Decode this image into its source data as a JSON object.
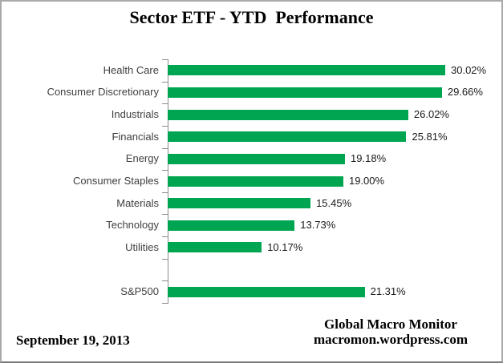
{
  "title": "Sector ETF - YTD  Performance",
  "footer": {
    "date": "September 19, 2013",
    "credit_line1": "Global Macro Monitor",
    "credit_line2": "macromon.wordpress.com"
  },
  "colors": {
    "bar": "#00a551",
    "axis": "#8c8c8c",
    "category_label": "#3f3f3f",
    "value_label": "#1a1a1a",
    "background": "#ffffff",
    "frame_border": "#a9a9a9"
  },
  "chart_data": {
    "type": "bar",
    "orientation": "horizontal",
    "title": "Sector ETF - YTD  Performance",
    "xlabel": "",
    "ylabel": "",
    "value_axis_visible": false,
    "grid": false,
    "legend": false,
    "xlim": [
      0,
      32
    ],
    "categories": [
      "Health Care",
      "Consumer Discretionary",
      "Industrials",
      "Financials",
      "Energy",
      "Consumer Staples",
      "Materials",
      "Technology",
      "Utilities",
      "",
      "S&P500"
    ],
    "values": [
      30.02,
      29.66,
      26.02,
      25.81,
      19.18,
      19.0,
      15.45,
      13.73,
      10.17,
      null,
      21.31
    ],
    "value_labels": [
      "30.02%",
      "29.66%",
      "26.02%",
      "25.81%",
      "19.18%",
      "19.00%",
      "15.45%",
      "13.73%",
      "10.17%",
      "",
      "21.31%"
    ]
  }
}
